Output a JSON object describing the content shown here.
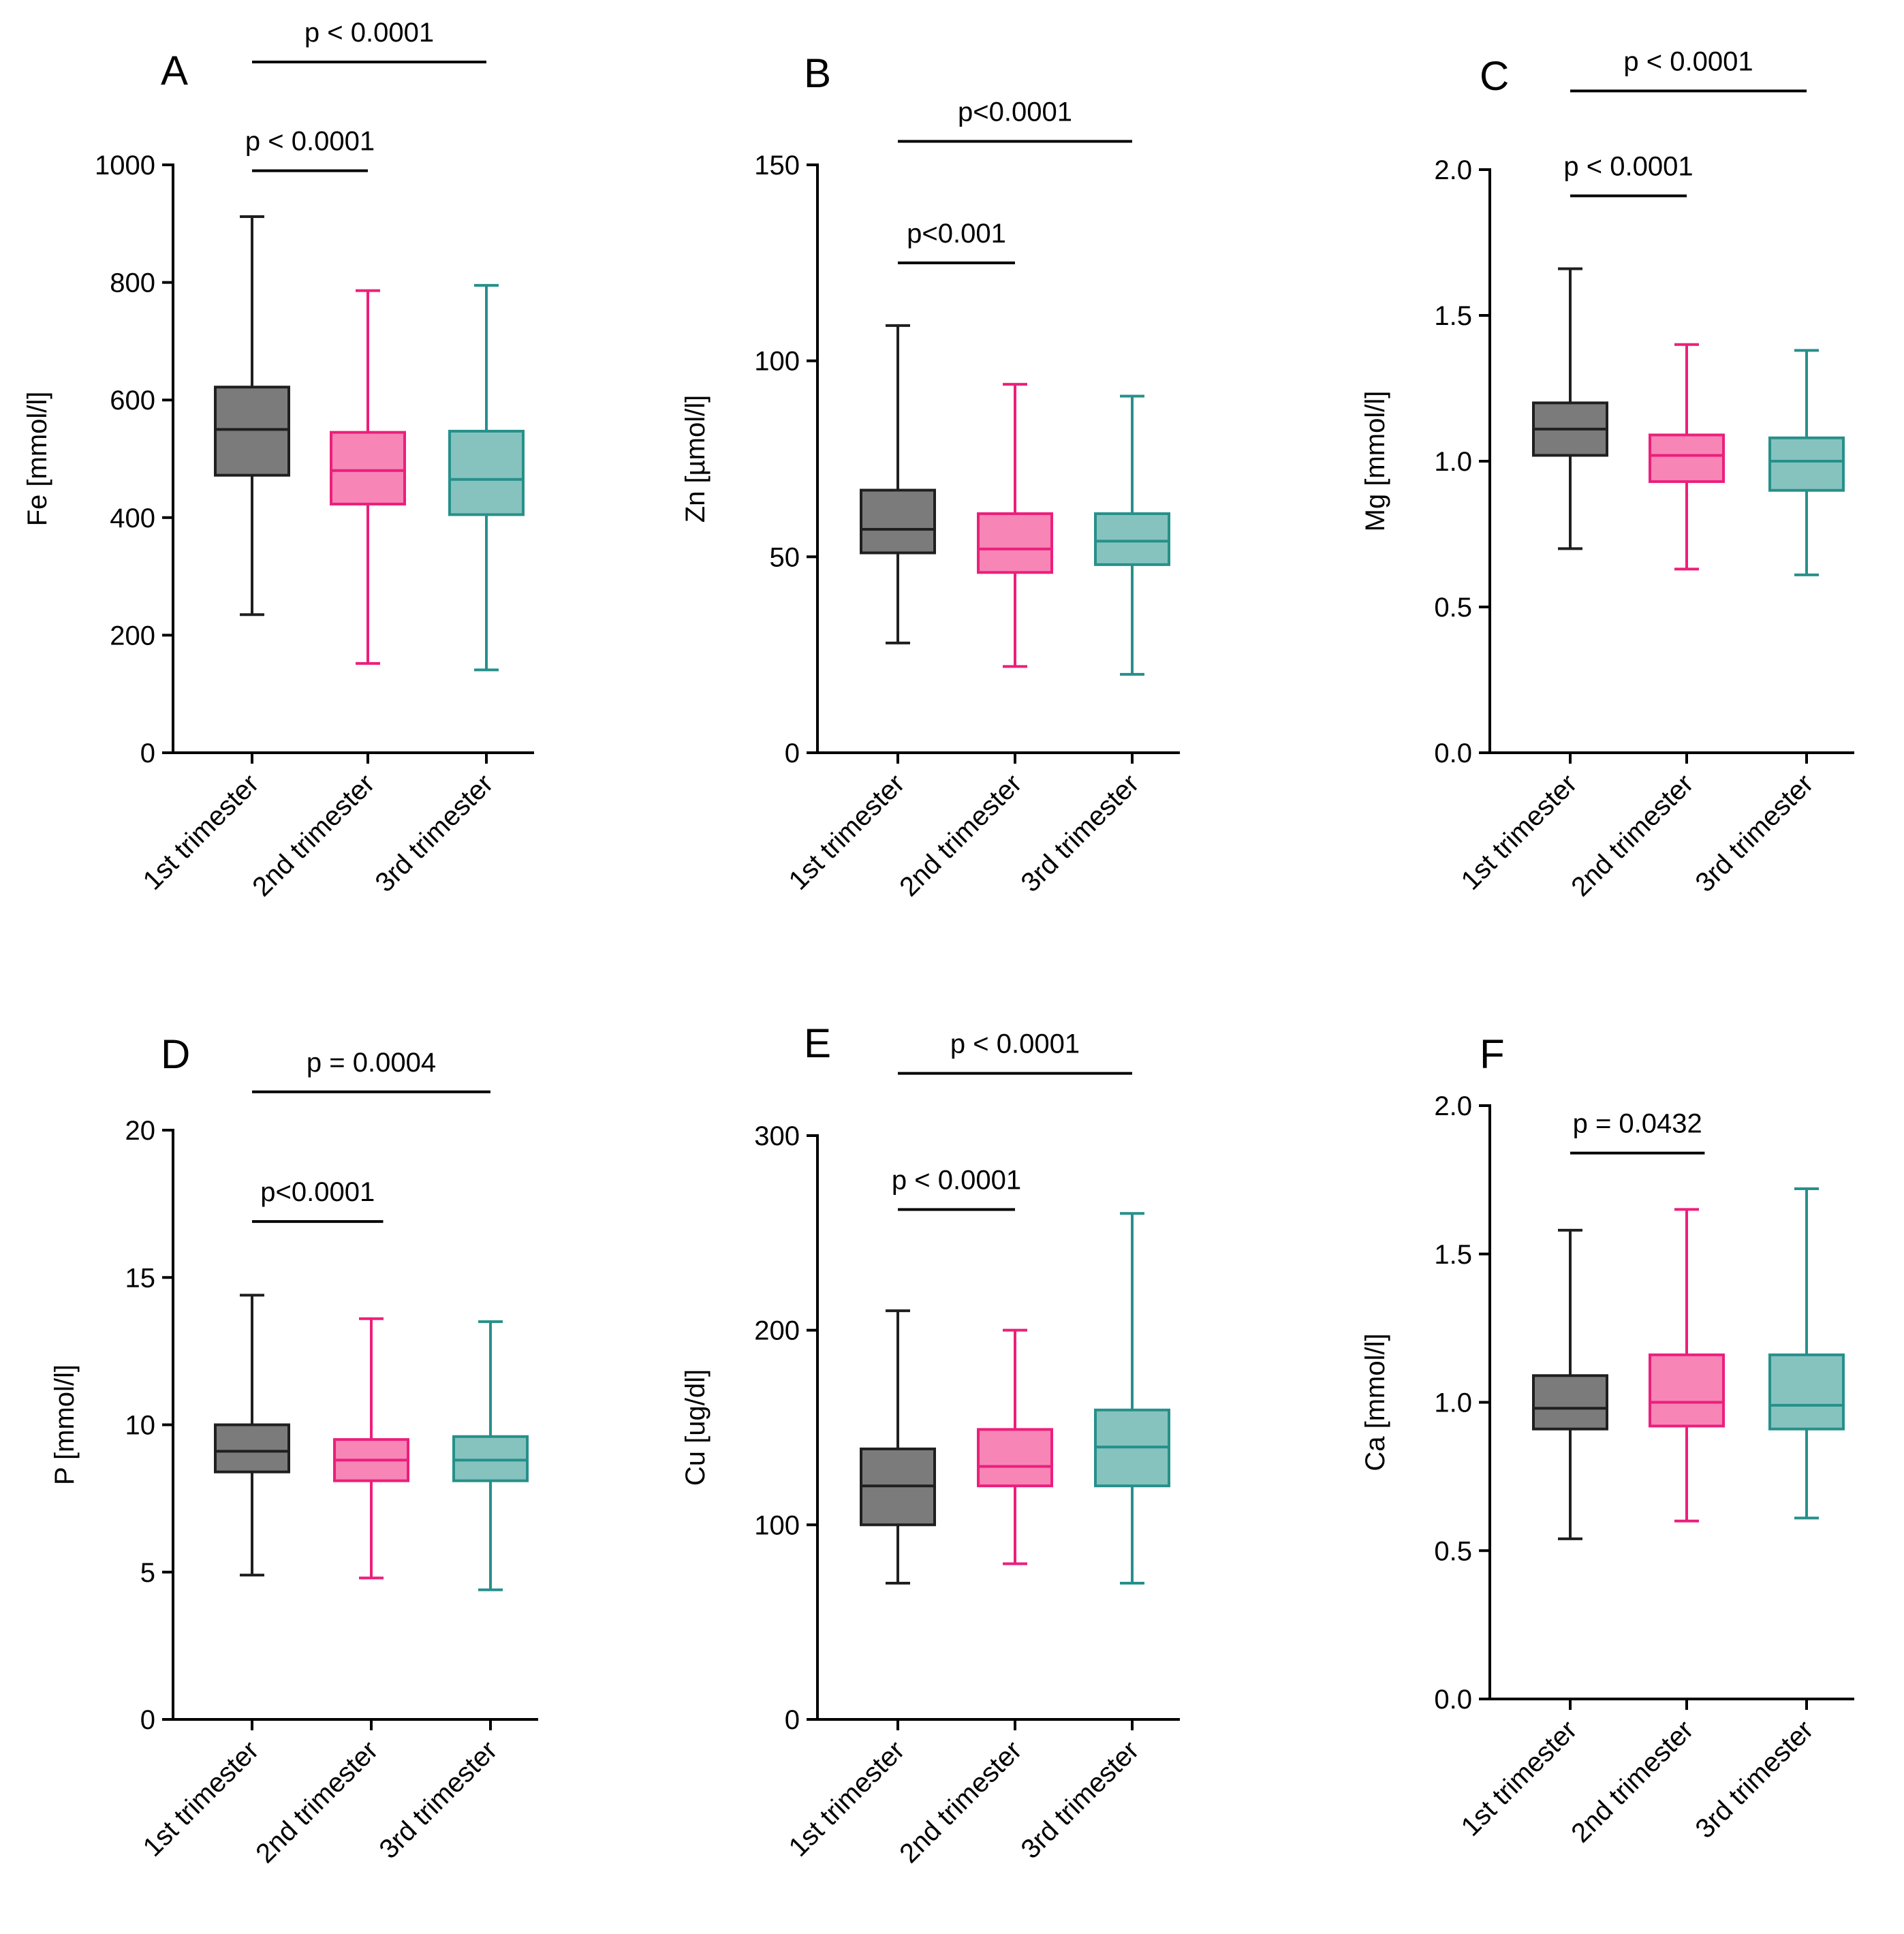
{
  "colors": {
    "first": {
      "stroke": "#1f1f1f",
      "fill": "#7b7b7b"
    },
    "second": {
      "stroke": "#ec1f7b",
      "fill": "#f786b7"
    },
    "third": {
      "stroke": "#26908a",
      "fill": "#86c3bf"
    },
    "axis": "#000000"
  },
  "chart_data": [
    {
      "type": "boxplot",
      "panel": "A",
      "ylabel": "Fe [mmol/l]",
      "ylim": [
        0,
        1000
      ],
      "yticks": [
        0,
        200,
        400,
        600,
        800,
        1000
      ],
      "categories": [
        "1st trimester",
        "2nd trimester",
        "3rd trimester"
      ],
      "boxes": [
        {
          "min": 235,
          "q1": 472,
          "median": 550,
          "q3": 622,
          "max": 912
        },
        {
          "min": 152,
          "q1": 423,
          "median": 480,
          "q3": 545,
          "max": 786
        },
        {
          "min": 141,
          "q1": 405,
          "median": 465,
          "q3": 547,
          "max": 795
        }
      ],
      "significance": [
        {
          "from": 0,
          "to": 2,
          "label": "p < 0.0001",
          "y": 1175
        },
        {
          "from": 0,
          "to": 1,
          "label": "p < 0.0001",
          "y": 990
        }
      ]
    },
    {
      "type": "boxplot",
      "panel": "B",
      "ylabel": "Zn [µmol/l]",
      "ylim": [
        0,
        150
      ],
      "yticks": [
        0,
        50,
        100,
        150
      ],
      "categories": [
        "1st trimester",
        "2nd trimester",
        "3rd trimester"
      ],
      "boxes": [
        {
          "min": 28,
          "q1": 51,
          "median": 57,
          "q3": 67,
          "max": 109
        },
        {
          "min": 22,
          "q1": 46,
          "median": 52,
          "q3": 61,
          "max": 94
        },
        {
          "min": 20,
          "q1": 48,
          "median": 54,
          "q3": 61,
          "max": 91
        }
      ],
      "significance": [
        {
          "from": 0,
          "to": 2,
          "label": "p<0.0001",
          "y": 156
        },
        {
          "from": 0,
          "to": 1,
          "label": "p<0.001",
          "y": 125
        }
      ]
    },
    {
      "type": "boxplot",
      "panel": "C",
      "ylabel": "Mg [mmol/l]",
      "ylim": [
        0,
        2.0
      ],
      "yticks": [
        0.0,
        0.5,
        1.0,
        1.5,
        2.0
      ],
      "categories": [
        "1st trimester",
        "2nd trimester",
        "3rd trimester"
      ],
      "boxes": [
        {
          "min": 0.7,
          "q1": 1.02,
          "median": 1.11,
          "q3": 1.2,
          "max": 1.66
        },
        {
          "min": 0.63,
          "q1": 0.93,
          "median": 1.02,
          "q3": 1.09,
          "max": 1.4
        },
        {
          "min": 0.61,
          "q1": 0.9,
          "median": 1.0,
          "q3": 1.08,
          "max": 1.38
        }
      ],
      "significance": [
        {
          "from": 0,
          "to": 2,
          "label": "p < 0.0001",
          "y": 2.27
        },
        {
          "from": 0,
          "to": 1,
          "label": "p < 0.0001",
          "y": 1.91
        }
      ]
    },
    {
      "type": "boxplot",
      "panel": "D",
      "ylabel": "P [mmol/l]",
      "ylim": [
        0,
        20
      ],
      "yticks": [
        0,
        5,
        10,
        15,
        20
      ],
      "categories": [
        "1st trimester",
        "2nd trimester",
        "3rd trimester"
      ],
      "boxes": [
        {
          "min": 4.9,
          "q1": 8.4,
          "median": 9.1,
          "q3": 10.0,
          "max": 14.4
        },
        {
          "min": 4.8,
          "q1": 8.1,
          "median": 8.8,
          "q3": 9.5,
          "max": 13.6
        },
        {
          "min": 4.4,
          "q1": 8.1,
          "median": 8.8,
          "q3": 9.6,
          "max": 13.5
        }
      ],
      "significance": [
        {
          "from": 0,
          "to": 2.2,
          "label": "p = 0.0004",
          "y": 21.3
        },
        {
          "from": 0,
          "to": 1.1,
          "label": "p<0.0001",
          "y": 16.9
        }
      ]
    },
    {
      "type": "boxplot",
      "panel": "E",
      "ylabel": "Cu [ug/dl]",
      "ylim": [
        0,
        300
      ],
      "yticks": [
        0,
        100,
        200,
        300
      ],
      "categories": [
        "1st trimester",
        "2nd trimester",
        "3rd trimester"
      ],
      "boxes": [
        {
          "min": 70,
          "q1": 100,
          "median": 120,
          "q3": 139,
          "max": 210
        },
        {
          "min": 80,
          "q1": 120,
          "median": 130,
          "q3": 149,
          "max": 200
        },
        {
          "min": 70,
          "q1": 120,
          "median": 140,
          "q3": 159,
          "max": 260
        }
      ],
      "significance": [
        {
          "from": 0,
          "to": 2,
          "label": "p < 0.0001",
          "y": 332
        },
        {
          "from": 0,
          "to": 1,
          "label": "p < 0.0001",
          "y": 262
        }
      ]
    },
    {
      "type": "boxplot",
      "panel": "F",
      "ylabel": "Ca [mmol/l]",
      "ylim": [
        0,
        2.0
      ],
      "yticks": [
        0.0,
        0.5,
        1.0,
        1.5,
        2.0
      ],
      "categories": [
        "1st trimester",
        "2nd trimester",
        "3rd trimester"
      ],
      "boxes": [
        {
          "min": 0.54,
          "q1": 0.91,
          "median": 0.98,
          "q3": 1.09,
          "max": 1.58
        },
        {
          "min": 0.6,
          "q1": 0.92,
          "median": 1.0,
          "q3": 1.16,
          "max": 1.65
        },
        {
          "min": 0.61,
          "q1": 0.91,
          "median": 0.99,
          "q3": 1.16,
          "max": 1.72
        }
      ],
      "significance": [
        {
          "from": 0,
          "to": 1.15,
          "label": "p = 0.0432",
          "y": 1.84
        }
      ]
    }
  ]
}
